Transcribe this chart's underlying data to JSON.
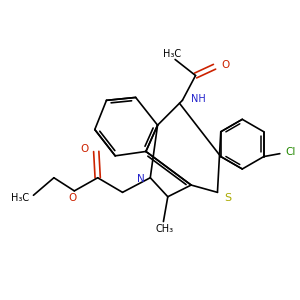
{
  "figsize": [
    3.0,
    3.0
  ],
  "dpi": 100,
  "bond_color": "#000000",
  "bond_lw": 1.2,
  "N_color": "#2222cc",
  "O_color": "#cc2200",
  "S_color": "#aaaa00",
  "Cl_color": "#228800",
  "text_color": "#000000",
  "font_size": 7.0,
  "xlim": [
    0,
    10
  ],
  "ylim": [
    0,
    10
  ]
}
